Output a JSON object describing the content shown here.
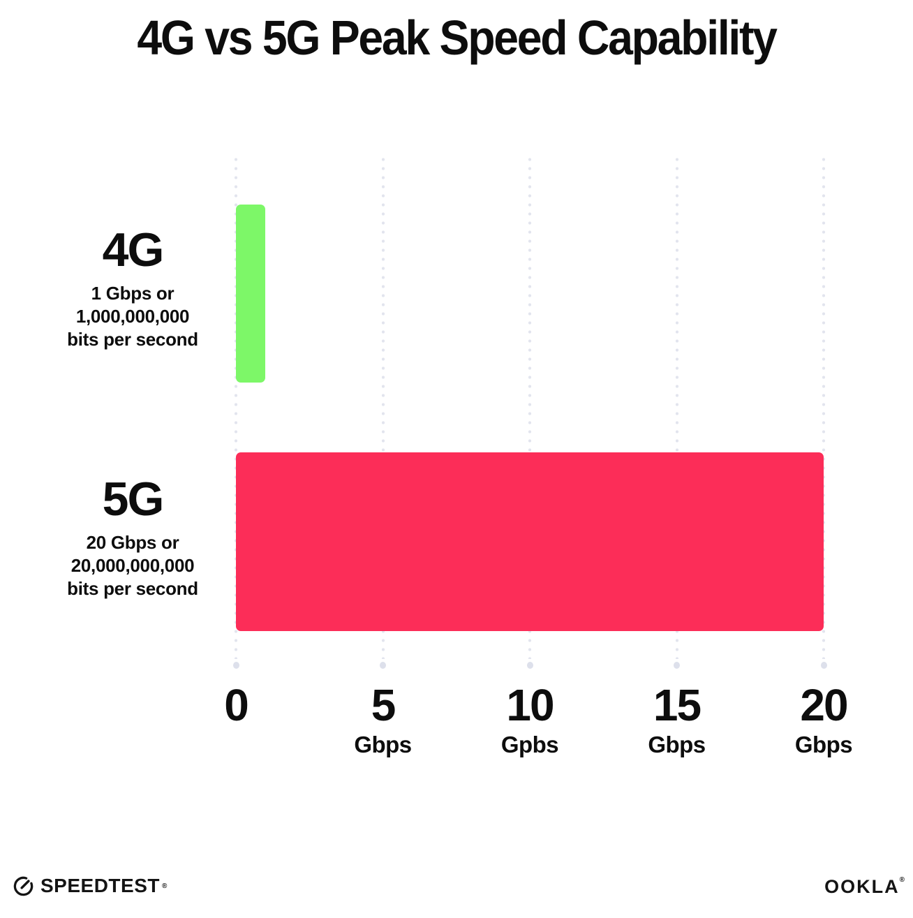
{
  "title": "4G vs 5G Peak Speed Capability",
  "chart_data": {
    "type": "bar",
    "orientation": "horizontal",
    "title": "4G vs 5G Peak Speed Capability",
    "categories": [
      "4G",
      "5G"
    ],
    "values": [
      1,
      20
    ],
    "value_unit": "Gbps",
    "bar_colors": [
      "#7DF768",
      "#FC2D58"
    ],
    "row_descriptions": [
      [
        "1 Gbps or",
        "1,000,000,000",
        "bits per second"
      ],
      [
        "20 Gbps or",
        "20,000,000,000",
        "bits per second"
      ]
    ],
    "xlim": [
      0,
      20
    ],
    "x_ticks": [
      {
        "value": "0",
        "unit": ""
      },
      {
        "value": "5",
        "unit": "Gbps"
      },
      {
        "value": "10",
        "unit": "Gpbs"
      },
      {
        "value": "15",
        "unit": "Gbps"
      },
      {
        "value": "20",
        "unit": "Gbps"
      }
    ],
    "grid": "vertical-dotted",
    "legend": "none"
  },
  "footer": {
    "speedtest_label": "SPEEDTEST",
    "speedtest_mark": "®",
    "ookla_label": "OOKLA",
    "ookla_mark": "®"
  },
  "colors": {
    "background": "#FFFFFF",
    "text": "#0D0D0D",
    "gridline": "#E2E4EE",
    "bar_4g": "#7DF768",
    "bar_5g": "#FC2D58"
  }
}
